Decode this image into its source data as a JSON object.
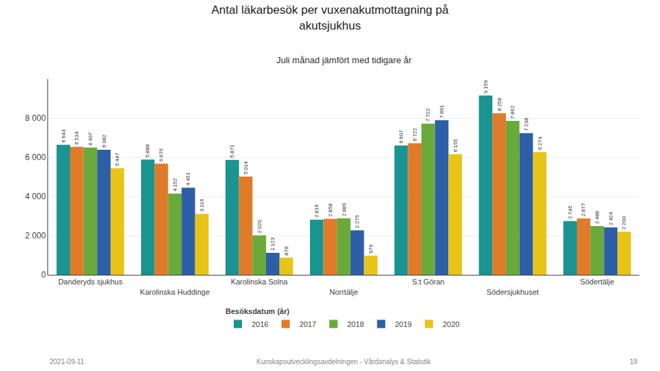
{
  "chart_data": {
    "type": "bar",
    "title": "Antal läkarbesök per vuxenakutmottagning på\nakutsjukhus",
    "subtitle": "Juli månad jämfört med tidigare år",
    "categories": [
      "Danderyds sjukhus",
      "Karolinska Huddinge",
      "Karolinska Solna",
      "Norrtälje",
      "S:t Göran",
      "Södersjukhuset",
      "Södertälje"
    ],
    "series": [
      {
        "name": "2016",
        "color": "#1a9490",
        "values": [
          6643,
          5888,
          5871,
          2816,
          6607,
          9159,
          2745
        ],
        "value_labels": [
          "6 643",
          "5 888",
          "5 871",
          "2 816",
          "6 607",
          "9 159",
          "2 745"
        ]
      },
      {
        "name": "2017",
        "color": "#e07b2a",
        "values": [
          6534,
          5675,
          5014,
          2858,
          6722,
          8258,
          2877
        ],
        "value_labels": [
          "6 534",
          "5 675",
          "5 014",
          "2 858",
          "6 722",
          "8 258",
          "2 877"
        ]
      },
      {
        "name": "2018",
        "color": "#6aaa3a",
        "values": [
          6497,
          4152,
          2020,
          2889,
          7722,
          7862,
          2488
        ],
        "value_labels": [
          "6 497",
          "4 152",
          "2 020",
          "2 889",
          "7 722",
          "7 862",
          "2 488"
        ]
      },
      {
        "name": "2019",
        "color": "#2d5fa8",
        "values": [
          6382,
          4451,
          1123,
          2275,
          7891,
          7238,
          2424
        ],
        "value_labels": [
          "6 382",
          "4 451",
          "1 123",
          "2 275",
          "7 891",
          "7 238",
          "2 424"
        ]
      },
      {
        "name": "2020",
        "color": "#e8c418",
        "values": [
          5447,
          3116,
          878,
          979,
          6155,
          6274,
          2200
        ],
        "value_labels": [
          "5 447",
          "3 116",
          "878",
          "979",
          "6 155",
          "6 274",
          "2 200"
        ]
      }
    ],
    "ylim": [
      0,
      10000
    ],
    "yticks": [
      0,
      {
        "value": 2000,
        "label": "2 000"
      },
      {
        "value": 4000,
        "label": "4 000"
      },
      {
        "value": 6000,
        "label": "6 000"
      },
      {
        "value": 8000,
        "label": "8 000"
      }
    ],
    "grid": true,
    "data_labels": true,
    "legend": "bottom",
    "legend_title": "Besöksdatum (år)",
    "annotations": [
      "2021-09-11",
      "Kunskapsutvecklingsavdelningen - Vårdanalys & Statistik",
      "19"
    ]
  }
}
